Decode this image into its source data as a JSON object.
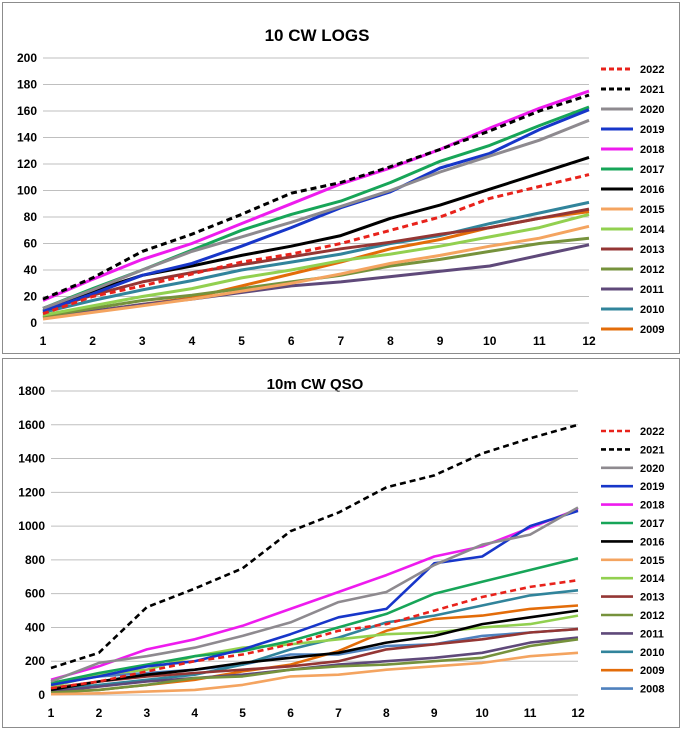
{
  "chart_data": [
    {
      "type": "line",
      "title": "10 CW LOGS",
      "xlabel": "",
      "ylabel": "",
      "x": [
        1,
        2,
        3,
        4,
        5,
        6,
        7,
        8,
        9,
        10,
        11,
        12
      ],
      "ylim": [
        0,
        200
      ],
      "yticks": [
        0,
        20,
        40,
        60,
        80,
        100,
        120,
        140,
        160,
        180,
        200
      ],
      "grid": true,
      "legend_position": "right",
      "series": [
        {
          "name": "2022",
          "color": "#e8221b",
          "dash": true,
          "values": [
            7,
            20,
            28,
            37,
            46,
            52,
            60,
            70,
            80,
            94,
            103,
            112
          ]
        },
        {
          "name": "2021",
          "color": "#000000",
          "dash": true,
          "values": [
            18,
            34,
            54,
            67,
            82,
            98,
            106,
            118,
            131,
            145,
            160,
            172
          ]
        },
        {
          "name": "2020",
          "color": "#8e8a8f",
          "dash": false,
          "values": [
            11,
            25,
            40,
            54,
            65,
            76,
            88,
            100,
            114,
            126,
            138,
            153
          ]
        },
        {
          "name": "2019",
          "color": "#1736c9",
          "dash": false,
          "values": [
            9,
            22,
            36,
            45,
            58,
            72,
            87,
            99,
            117,
            128,
            146,
            161
          ]
        },
        {
          "name": "2018",
          "color": "#ee1bee",
          "dash": false,
          "values": [
            17,
            33,
            48,
            60,
            75,
            90,
            105,
            117,
            131,
            147,
            162,
            175
          ]
        },
        {
          "name": "2017",
          "color": "#17a558",
          "dash": false,
          "values": [
            11,
            26,
            40,
            55,
            70,
            82,
            92,
            106,
            122,
            134,
            149,
            163
          ]
        },
        {
          "name": "2016",
          "color": "#000000",
          "dash": false,
          "values": [
            11,
            24,
            36,
            43,
            51,
            58,
            66,
            79,
            89,
            101,
            113,
            125
          ]
        },
        {
          "name": "2015",
          "color": "#f4a460",
          "dash": false,
          "values": [
            3,
            8,
            13,
            18,
            24,
            30,
            37,
            45,
            51,
            58,
            64,
            73
          ]
        },
        {
          "name": "2014",
          "color": "#92d050",
          "dash": false,
          "values": [
            6,
            13,
            20,
            26,
            34,
            40,
            47,
            52,
            58,
            65,
            72,
            82
          ]
        },
        {
          "name": "2013",
          "color": "#943634",
          "dash": false,
          "values": [
            9,
            21,
            31,
            38,
            44,
            50,
            56,
            61,
            67,
            72,
            79,
            86
          ]
        },
        {
          "name": "2012",
          "color": "#76923c",
          "dash": false,
          "values": [
            5,
            11,
            17,
            21,
            26,
            31,
            36,
            43,
            48,
            54,
            60,
            64
          ]
        },
        {
          "name": "2011",
          "color": "#5f497a",
          "dash": false,
          "values": [
            4,
            9,
            14,
            18,
            23,
            28,
            31,
            35,
            39,
            43,
            51,
            59
          ]
        },
        {
          "name": "2010",
          "color": "#31849b",
          "dash": false,
          "values": [
            8,
            17,
            25,
            32,
            40,
            46,
            52,
            60,
            66,
            75,
            83,
            91
          ]
        },
        {
          "name": "2009",
          "color": "#e36c09",
          "dash": false,
          "values": [
            4,
            9,
            14,
            19,
            28,
            37,
            46,
            56,
            63,
            72,
            79,
            84
          ]
        }
      ]
    },
    {
      "type": "line",
      "title": "10m CW QSO",
      "xlabel": "",
      "ylabel": "",
      "x": [
        1,
        2,
        3,
        4,
        5,
        6,
        7,
        8,
        9,
        10,
        11,
        12
      ],
      "ylim": [
        0,
        1800
      ],
      "yticks": [
        0,
        200,
        400,
        600,
        800,
        1000,
        1200,
        1400,
        1600,
        1800
      ],
      "grid": true,
      "legend_position": "right",
      "series": [
        {
          "name": "2022",
          "color": "#e8221b",
          "dash": true,
          "values": [
            40,
            80,
            140,
            200,
            240,
            300,
            380,
            420,
            500,
            580,
            640,
            680
          ]
        },
        {
          "name": "2021",
          "color": "#000000",
          "dash": true,
          "values": [
            160,
            250,
            520,
            630,
            750,
            970,
            1080,
            1230,
            1300,
            1430,
            1520,
            1600
          ]
        },
        {
          "name": "2020",
          "color": "#8e8a8f",
          "dash": false,
          "values": [
            80,
            190,
            230,
            280,
            350,
            430,
            550,
            610,
            770,
            890,
            950,
            1110
          ]
        },
        {
          "name": "2019",
          "color": "#1736c9",
          "dash": false,
          "values": [
            60,
            110,
            170,
            200,
            270,
            360,
            460,
            510,
            780,
            820,
            1000,
            1090
          ]
        },
        {
          "name": "2018",
          "color": "#ee1bee",
          "dash": false,
          "values": [
            90,
            170,
            270,
            330,
            410,
            510,
            610,
            710,
            820,
            880,
            990,
            1100
          ]
        },
        {
          "name": "2017",
          "color": "#17a558",
          "dash": false,
          "values": [
            70,
            130,
            180,
            230,
            260,
            320,
            400,
            480,
            600,
            670,
            740,
            810
          ]
        },
        {
          "name": "2016",
          "color": "#000000",
          "dash": false,
          "values": [
            30,
            80,
            120,
            150,
            190,
            220,
            250,
            310,
            350,
            420,
            460,
            500
          ]
        },
        {
          "name": "2015",
          "color": "#f4a460",
          "dash": false,
          "values": [
            5,
            10,
            20,
            30,
            60,
            110,
            120,
            150,
            170,
            190,
            230,
            250
          ]
        },
        {
          "name": "2014",
          "color": "#92d050",
          "dash": false,
          "values": [
            50,
            120,
            150,
            230,
            280,
            300,
            330,
            360,
            370,
            400,
            420,
            470
          ]
        },
        {
          "name": "2013",
          "color": "#943634",
          "dash": false,
          "values": [
            40,
            80,
            110,
            130,
            150,
            170,
            200,
            270,
            300,
            330,
            370,
            390
          ]
        },
        {
          "name": "2012",
          "color": "#76923c",
          "dash": false,
          "values": [
            15,
            30,
            60,
            100,
            110,
            150,
            170,
            180,
            200,
            220,
            290,
            330
          ]
        },
        {
          "name": "2011",
          "color": "#5f497a",
          "dash": false,
          "values": [
            20,
            50,
            80,
            100,
            120,
            150,
            180,
            200,
            220,
            250,
            310,
            340
          ]
        },
        {
          "name": "2010",
          "color": "#31849b",
          "dash": false,
          "values": [
            30,
            60,
            90,
            120,
            180,
            270,
            340,
            430,
            470,
            530,
            590,
            620
          ]
        },
        {
          "name": "2009",
          "color": "#e36c09",
          "dash": false,
          "values": [
            15,
            30,
            60,
            90,
            140,
            180,
            260,
            380,
            450,
            470,
            510,
            530
          ]
        },
        {
          "name": "2008",
          "color": "#4f81bd",
          "dash": false,
          "values": [
            70,
            110,
            130,
            150,
            180,
            240,
            240,
            290,
            300,
            350,
            370,
            390
          ]
        }
      ]
    }
  ]
}
